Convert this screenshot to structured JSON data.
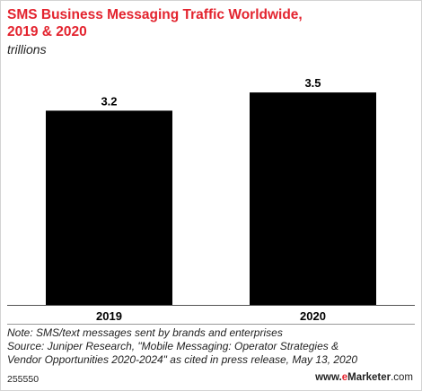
{
  "chart_data": {
    "type": "bar",
    "title": "SMS Business Messaging Traffic Worldwide, 2019 & 2020",
    "subtitle": "trillions",
    "categories": [
      "2019",
      "2020"
    ],
    "values": [
      3.2,
      3.5
    ],
    "data_labels": [
      "3.2",
      "3.5"
    ],
    "bar_color": "#000000",
    "ylim": [
      0,
      3.93
    ],
    "grid": false,
    "legend": "none"
  },
  "header": {
    "title_line1": "SMS Business Messaging Traffic Worldwide,",
    "title_line2": "2019 & 2020",
    "subtitle": "trillions"
  },
  "footer": {
    "note": "Note: SMS/text messages sent by brands and enterprises",
    "source_line1": "Source: Juniper Research, \"Mobile Messaging: Operator Strategies &",
    "source_line2": "Vendor Opportunities 2020-2024\" as cited in press release, May 13, 2020",
    "chart_id": "255550",
    "brand_prefix": "www.",
    "brand_e": "e",
    "brand_name": "Marketer",
    "brand_suffix": ".com"
  },
  "colors": {
    "title": "#e3232e",
    "bars": "#000000",
    "axis": "#555555"
  }
}
